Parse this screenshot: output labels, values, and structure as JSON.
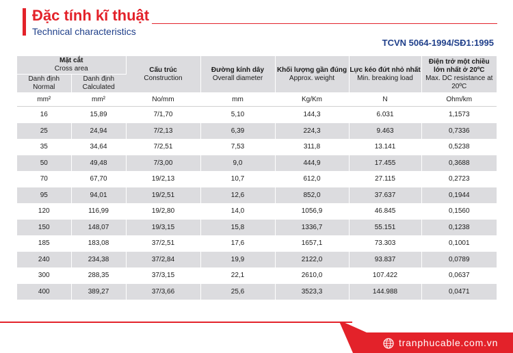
{
  "title": {
    "vietnamese": "Đặc tính kĩ thuật",
    "english": "Technical characteristics"
  },
  "standard": "TCVN 5064-1994/SĐ1:1995",
  "table": {
    "cross_area": {
      "vi": "Mặt cắt",
      "en": "Cross area"
    },
    "normal": {
      "vi": "Danh định",
      "en": "Normal"
    },
    "calculated": {
      "vi": "Danh định",
      "en": "Calculated"
    },
    "construction": {
      "vi": "Cấu trúc",
      "en": "Construction"
    },
    "diameter": {
      "vi": "Đường kính dây",
      "en": "Overall diameter"
    },
    "weight": {
      "vi": "Khối lượng gần đúng",
      "en": "Approx. weight"
    },
    "breaking": {
      "vi": "Lực kéo đứt nhỏ nhất",
      "en": "Min. breaking load"
    },
    "resistance": {
      "vi1": "Điện trở một chiều",
      "vi2": "lớn nhất ở 20ºC",
      "en": "Max. DC resistance at 20ºC"
    },
    "units": [
      "mm²",
      "mm²",
      "No/mm",
      "mm",
      "Kg/Km",
      "N",
      "Ohm/km"
    ],
    "rows": [
      [
        "16",
        "15,89",
        "7/1,70",
        "5,10",
        "144,3",
        "6.031",
        "1,1573"
      ],
      [
        "25",
        "24,94",
        "7/2,13",
        "6,39",
        "224,3",
        "9.463",
        "0,7336"
      ],
      [
        "35",
        "34,64",
        "7/2,51",
        "7,53",
        "311,8",
        "13.141",
        "0,5238"
      ],
      [
        "50",
        "49,48",
        "7/3,00",
        "9,0",
        "444,9",
        "17.455",
        "0,3688"
      ],
      [
        "70",
        "67,70",
        "19/2,13",
        "10,7",
        "612,0",
        "27.115",
        "0,2723"
      ],
      [
        "95",
        "94,01",
        "19/2,51",
        "12,6",
        "852,0",
        "37.637",
        "0,1944"
      ],
      [
        "120",
        "116,99",
        "19/2,80",
        "14,0",
        "1056,9",
        "46.845",
        "0,1560"
      ],
      [
        "150",
        "148,07",
        "19/3,15",
        "15,8",
        "1336,7",
        "55.151",
        "0,1238"
      ],
      [
        "185",
        "183,08",
        "37/2,51",
        "17,6",
        "1657,1",
        "73.303",
        "0,1001"
      ],
      [
        "240",
        "234,38",
        "37/2,84",
        "19,9",
        "2122,0",
        "93.837",
        "0,0789"
      ],
      [
        "300",
        "288,35",
        "37/3,15",
        "22,1",
        "2610,0",
        "107.422",
        "0,0637"
      ],
      [
        "400",
        "389,27",
        "37/3,66",
        "25,6",
        "3523,3",
        "144.988",
        "0,0471"
      ]
    ]
  },
  "footer": {
    "website": "tranphucable.com.vn",
    "icon": "globe-icon",
    "accent": "#e3222a"
  }
}
